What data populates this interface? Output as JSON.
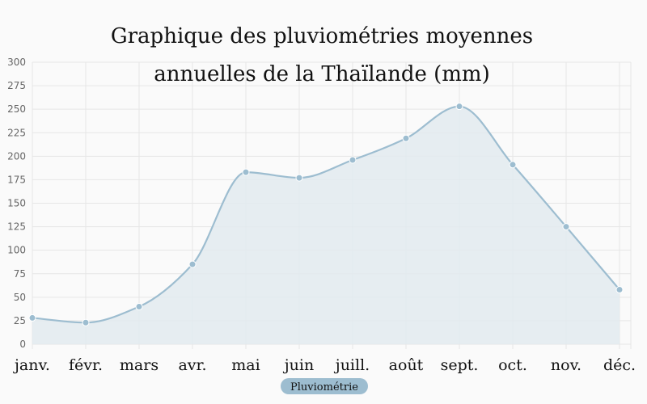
{
  "chart_data": {
    "type": "area",
    "title": [
      "Graphique des pluviométries moyennes",
      "annuelles de la Thaïlande (mm)"
    ],
    "categories": [
      "janv.",
      "févr.",
      "mars",
      "avr.",
      "mai",
      "juin",
      "juill.",
      "août",
      "sept.",
      "oct.",
      "nov.",
      "déc."
    ],
    "series": [
      {
        "name": "Pluviométrie",
        "values": [
          28,
          23,
          40,
          85,
          183,
          177,
          196,
          219,
          253,
          191,
          125,
          58
        ]
      }
    ],
    "ylim": [
      0,
      300
    ],
    "yticks": [
      0,
      25,
      50,
      75,
      100,
      125,
      150,
      175,
      200,
      225,
      250,
      275,
      300
    ],
    "grid": true,
    "legend": "bottom",
    "colors": {
      "line": "#9dbdd0",
      "fill": "#e2eaef",
      "point": "#9dbdd0",
      "legend_bg": "#9dbdd0",
      "grid": "#e6e6e6"
    }
  }
}
